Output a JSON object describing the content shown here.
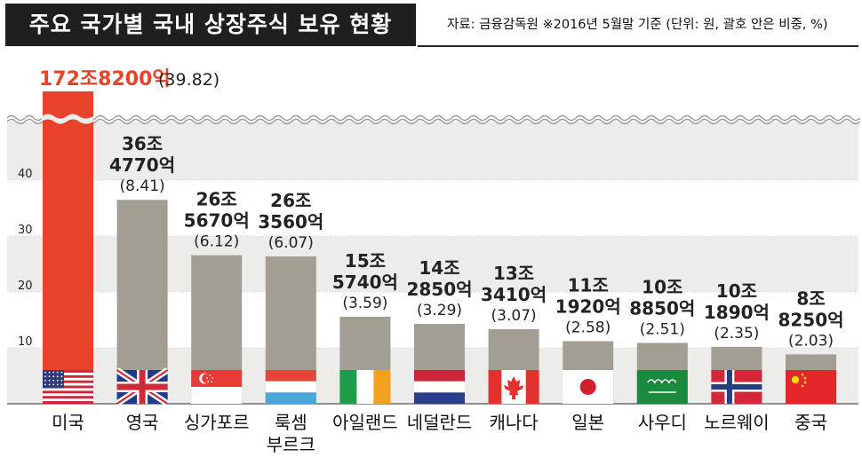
{
  "header": {
    "title": "주요 국가별 국내 상장주식 보유 현황",
    "source_note": "자료: 금융감독원 ※2016년 5월말 기준 (단위: 원, 괄호 안은 비중, %)"
  },
  "colors": {
    "highlight_bar": "#e8432a",
    "bar": "#a39e93",
    "band": "#ececea",
    "highlight_text": "#e8432a"
  },
  "chart_data": {
    "type": "bar",
    "title": "주요 국가별 국내 상장주식 보유 현황",
    "xlabel": "",
    "ylabel": "",
    "ylim": [
      0,
      50
    ],
    "yticks": [
      10,
      20,
      30,
      40
    ],
    "axis_break": true,
    "categories": [
      "미국",
      "영국",
      "싱가포르",
      "룩셈\n부르크",
      "아일랜드",
      "네덜란드",
      "캐나다",
      "일본",
      "사우디",
      "노르웨이",
      "중국"
    ],
    "category_lines": [
      [
        "미국"
      ],
      [
        "영국"
      ],
      [
        "싱가포르"
      ],
      [
        "룩셈",
        "부르크"
      ],
      [
        "아일랜드"
      ],
      [
        "네덜란드"
      ],
      [
        "캐나다"
      ],
      [
        "일본"
      ],
      [
        "사우디"
      ],
      [
        "노르웨이"
      ],
      [
        "중국"
      ]
    ],
    "values_trillion_won": [
      172.82,
      36.477,
      26.567,
      26.356,
      15.574,
      14.285,
      13.341,
      11.192,
      10.885,
      10.189,
      8.825
    ],
    "share_percent": [
      39.82,
      8.41,
      6.12,
      6.07,
      3.59,
      3.29,
      3.07,
      2.58,
      2.51,
      2.35,
      2.03
    ],
    "amount_labels": [
      "172조8200억",
      "36조 4770억",
      "26조 5670억",
      "26조 3560억",
      "15조 5740억",
      "14조 2850억",
      "13조 3410억",
      "11조 1920억",
      "10조 8850억",
      "10조 1890억",
      "8조 8250억"
    ],
    "amount_label_lines": [
      [
        "172조8200억"
      ],
      [
        "36조",
        "4770억"
      ],
      [
        "26조",
        "5670억"
      ],
      [
        "26조",
        "3560억"
      ],
      [
        "15조",
        "5740억"
      ],
      [
        "14조",
        "2850억"
      ],
      [
        "13조",
        "3410억"
      ],
      [
        "11조",
        "1920억"
      ],
      [
        "10조",
        "8850억"
      ],
      [
        "10조",
        "1890억"
      ],
      [
        "8조",
        "8250억"
      ]
    ],
    "share_labels": [
      "(39.82)",
      "(8.41)",
      "(6.12)",
      "(6.07)",
      "(3.59)",
      "(3.29)",
      "(3.07)",
      "(2.58)",
      "(2.51)",
      "(2.35)",
      "(2.03)"
    ],
    "flags": [
      "us-flag",
      "uk-flag",
      "singapore-flag",
      "luxembourg-flag",
      "ireland-flag",
      "netherlands-flag",
      "canada-flag",
      "japan-flag",
      "saudi-arabia-flag",
      "norway-flag",
      "china-flag"
    ],
    "highlight_index": 0
  }
}
